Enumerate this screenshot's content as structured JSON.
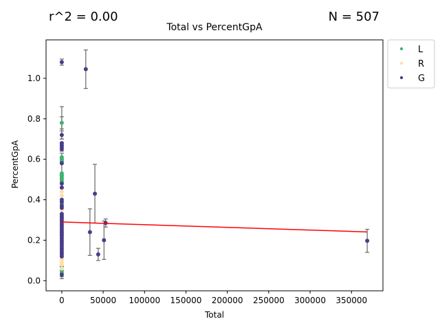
{
  "chart_data": {
    "type": "scatter",
    "title": "Total vs PercentGpA",
    "xlabel": "Total",
    "ylabel": "PercentGpA",
    "r2_text": "r^2 = 0.00",
    "n_text": "N = 507",
    "xlim": [
      -19000,
      388000
    ],
    "ylim": [
      -0.05,
      1.19
    ],
    "xticks": [
      0,
      50000,
      100000,
      150000,
      200000,
      250000,
      300000,
      350000
    ],
    "yticks": [
      0.0,
      0.2,
      0.4,
      0.6,
      0.8,
      1.0
    ],
    "ytick_labels": [
      "0.0",
      "0.2",
      "0.4",
      "0.6",
      "0.8",
      "1.0"
    ],
    "grid": false,
    "legend_position": "outside-top-right",
    "regression_line": {
      "x": [
        0,
        369000
      ],
      "y": [
        0.29,
        0.241
      ],
      "color": "#ff0000"
    },
    "series": [
      {
        "name": "L",
        "color": "#3cb371",
        "points": [
          {
            "x": 0,
            "y": 0.78,
            "err": 0.03
          },
          {
            "x": 0,
            "y": 0.61,
            "err": 0.02
          },
          {
            "x": 0,
            "y": 0.6
          },
          {
            "x": 0,
            "y": 0.59
          },
          {
            "x": 0,
            "y": 0.53
          },
          {
            "x": 0,
            "y": 0.52
          },
          {
            "x": 0,
            "y": 0.51
          },
          {
            "x": 0,
            "y": 0.5
          },
          {
            "x": 0,
            "y": 0.49
          },
          {
            "x": 0,
            "y": 0.38
          },
          {
            "x": 0,
            "y": 0.31
          },
          {
            "x": 0,
            "y": 0.24
          },
          {
            "x": 0,
            "y": 0.19
          },
          {
            "x": 0,
            "y": 0.07
          },
          {
            "x": 0,
            "y": 0.05
          },
          {
            "x": 0,
            "y": 0.04
          }
        ]
      },
      {
        "name": "R",
        "color": "#ffdead",
        "points": [
          {
            "x": 0,
            "y": 0.44
          },
          {
            "x": 0,
            "y": 0.42
          },
          {
            "x": 0,
            "y": 0.35
          },
          {
            "x": 0,
            "y": 0.33
          },
          {
            "x": 0,
            "y": 0.27
          },
          {
            "x": 0,
            "y": 0.22
          },
          {
            "x": 0,
            "y": 0.13
          },
          {
            "x": 0,
            "y": 0.11
          },
          {
            "x": 0,
            "y": 0.1
          },
          {
            "x": 0,
            "y": 0.09
          },
          {
            "x": 0,
            "y": 0.08
          },
          {
            "x": 0,
            "y": 0.06
          }
        ]
      },
      {
        "name": "G",
        "color": "#483d8b",
        "points": [
          {
            "x": 0,
            "y": 1.08,
            "err": 0.015
          },
          {
            "x": 0,
            "y": 0.72,
            "err": 0.02
          },
          {
            "x": 0,
            "y": 0.68
          },
          {
            "x": 0,
            "y": 0.67
          },
          {
            "x": 0,
            "y": 0.66,
            "err": 0.02
          },
          {
            "x": 0,
            "y": 0.65
          },
          {
            "x": 0,
            "y": 0.58
          },
          {
            "x": 0,
            "y": 0.48
          },
          {
            "x": 0,
            "y": 0.46
          },
          {
            "x": 0,
            "y": 0.4
          },
          {
            "x": 0,
            "y": 0.39
          },
          {
            "x": 0,
            "y": 0.37
          },
          {
            "x": 0,
            "y": 0.36
          },
          {
            "x": 0,
            "y": 0.33
          },
          {
            "x": 0,
            "y": 0.32
          },
          {
            "x": 0,
            "y": 0.31
          },
          {
            "x": 0,
            "y": 0.3
          },
          {
            "x": 0,
            "y": 0.29
          },
          {
            "x": 0,
            "y": 0.28
          },
          {
            "x": 0,
            "y": 0.27
          },
          {
            "x": 0,
            "y": 0.26
          },
          {
            "x": 0,
            "y": 0.25
          },
          {
            "x": 0,
            "y": 0.24
          },
          {
            "x": 0,
            "y": 0.23
          },
          {
            "x": 0,
            "y": 0.22
          },
          {
            "x": 0,
            "y": 0.21
          },
          {
            "x": 0,
            "y": 0.2
          },
          {
            "x": 0,
            "y": 0.19
          },
          {
            "x": 0,
            "y": 0.18
          },
          {
            "x": 0,
            "y": 0.17
          },
          {
            "x": 0,
            "y": 0.16
          },
          {
            "x": 0,
            "y": 0.15
          },
          {
            "x": 0,
            "y": 0.14
          },
          {
            "x": 0,
            "y": 0.13
          },
          {
            "x": 0,
            "y": 0.12
          },
          {
            "x": 0,
            "y": 0.03
          },
          {
            "x": 29000,
            "y": 1.045,
            "err": 0.095
          },
          {
            "x": 34000,
            "y": 0.24,
            "err": 0.115
          },
          {
            "x": 40000,
            "y": 0.43,
            "err": 0.145
          },
          {
            "x": 44000,
            "y": 0.13,
            "err": 0.03
          },
          {
            "x": 51000,
            "y": 0.2,
            "err": 0.095
          },
          {
            "x": 53000,
            "y": 0.285,
            "err": 0.02
          },
          {
            "x": 369000,
            "y": 0.197,
            "err": 0.057
          }
        ]
      }
    ],
    "extra_errorbars": [
      {
        "x": 0,
        "y": 0.78,
        "err": 0.08
      },
      {
        "x": 0,
        "y": 0.56,
        "err": 0.04
      },
      {
        "x": 0,
        "y": 0.49,
        "err": 0.03
      },
      {
        "x": 0,
        "y": 0.2,
        "err": 0.18
      },
      {
        "x": 0,
        "y": 0.04,
        "err": 0.03
      }
    ]
  }
}
